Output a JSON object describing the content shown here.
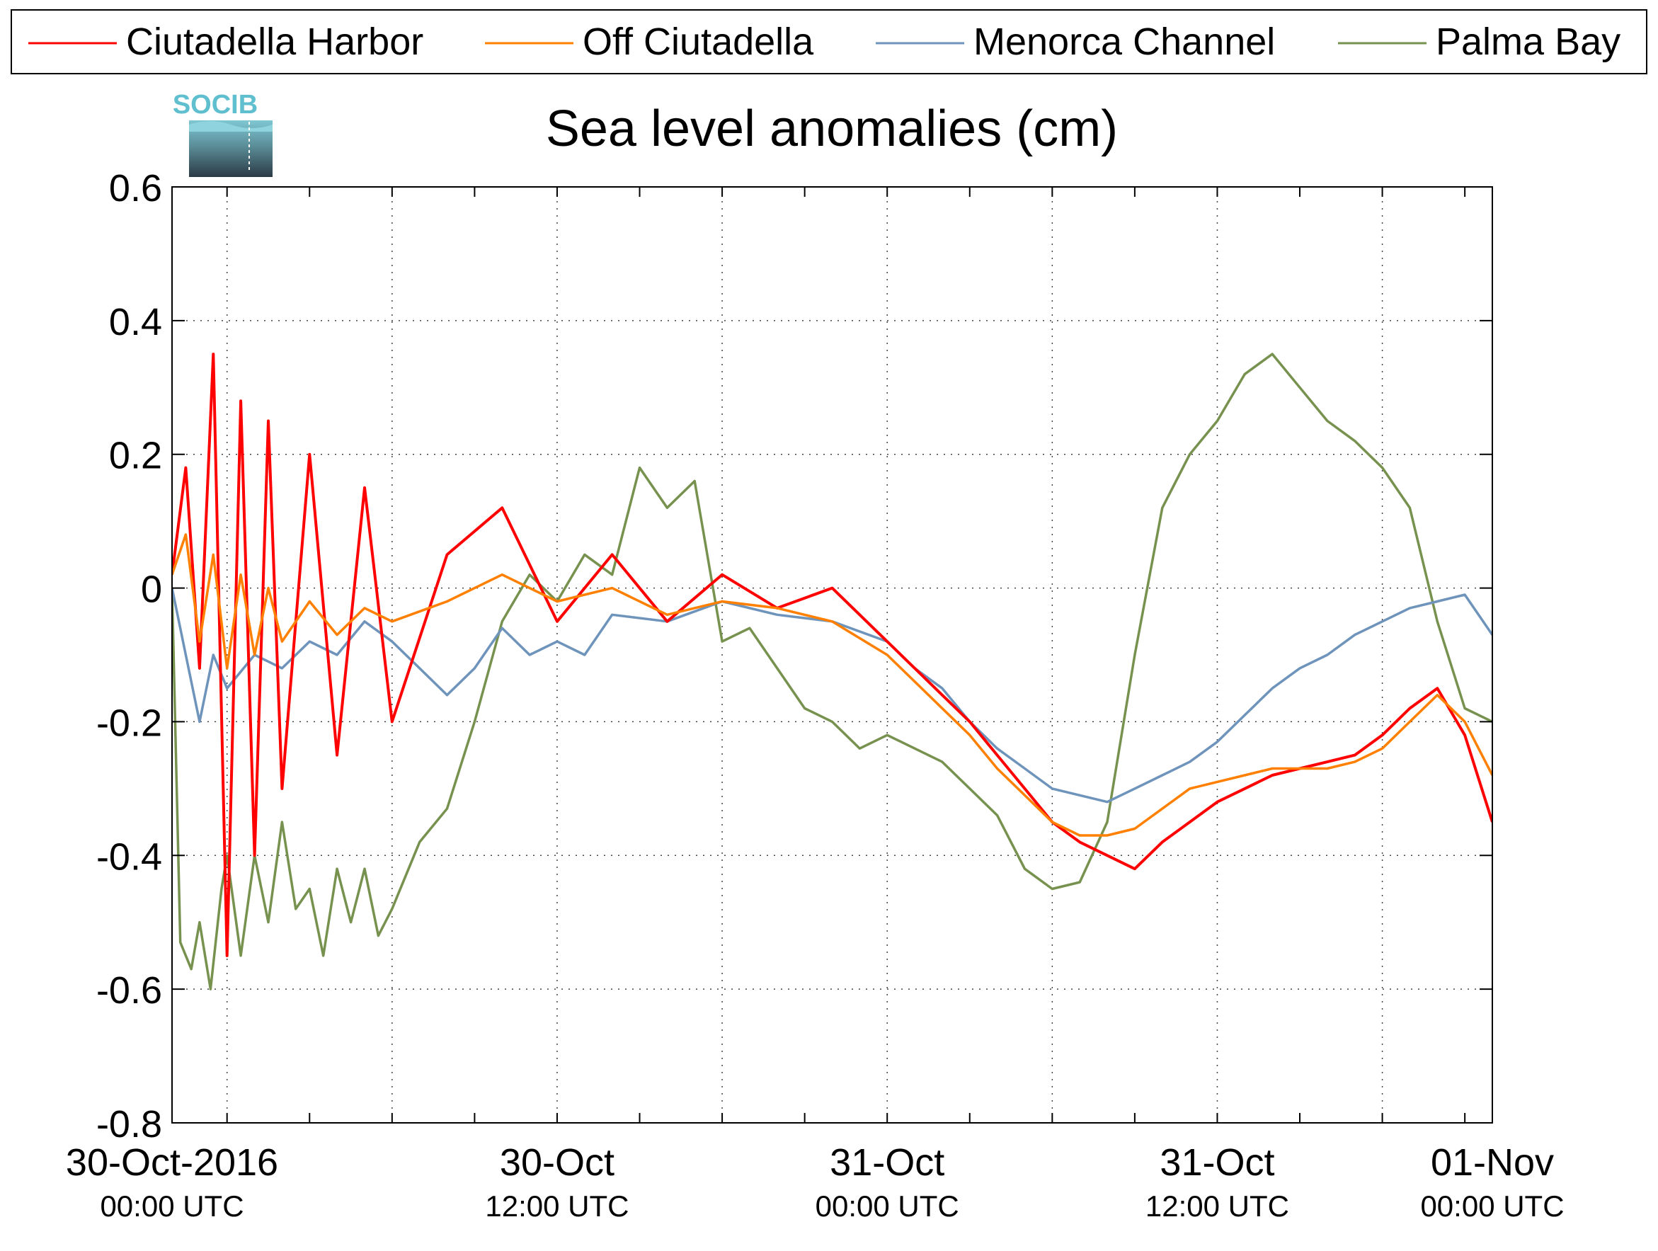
{
  "logo": {
    "text": "SOCIB"
  },
  "chart_data": {
    "type": "line",
    "title": "Sea level anomalies (cm)",
    "xlabel": "",
    "ylabel": "",
    "ylim": [
      -0.8,
      0.6
    ],
    "yticks": [
      -0.8,
      -0.6,
      -0.4,
      -0.2,
      0,
      0.2,
      0.4,
      0.6
    ],
    "ytick_labels": [
      "-0.8",
      "-0.6",
      "-0.4",
      "-0.2",
      "0",
      "0.2",
      "0.4",
      "0.6"
    ],
    "xlim_hours": [
      -2,
      46
    ],
    "x_unit": "hours after 30-Oct-2016 00:00 UTC",
    "xticks_major": [
      {
        "hour": 0,
        "date": "30-Oct-2016",
        "time": "00:00 UTC"
      },
      {
        "hour": 12,
        "date": "30-Oct",
        "time": "12:00 UTC"
      },
      {
        "hour": 24,
        "date": "31-Oct",
        "time": "00:00 UTC"
      },
      {
        "hour": 36,
        "date": "31-Oct",
        "time": "12:00 UTC"
      },
      {
        "hour": 48,
        "date": "01-Nov",
        "time": "00:00 UTC"
      }
    ],
    "grid": true,
    "legend_position": "top",
    "series": [
      {
        "name": "Ciutadella Harbor",
        "color": "#ff0000",
        "x": [
          -2,
          -1.5,
          -1,
          -0.5,
          0,
          0.5,
          1,
          1.5,
          2,
          3,
          4,
          5,
          6,
          8,
          10,
          12,
          14,
          16,
          18,
          20,
          22,
          24,
          25,
          26,
          27,
          28,
          29,
          30,
          31,
          32,
          33,
          34,
          35,
          36,
          37,
          38,
          39,
          40,
          41,
          42,
          43,
          44,
          45,
          46
        ],
        "y": [
          0.02,
          0.18,
          -0.12,
          0.35,
          -0.55,
          0.28,
          -0.4,
          0.25,
          -0.3,
          0.2,
          -0.25,
          0.15,
          -0.2,
          0.05,
          0.12,
          -0.05,
          0.05,
          -0.05,
          0.02,
          -0.03,
          0.0,
          -0.08,
          -0.12,
          -0.16,
          -0.2,
          -0.25,
          -0.3,
          -0.35,
          -0.38,
          -0.4,
          -0.42,
          -0.38,
          -0.35,
          -0.32,
          -0.3,
          -0.28,
          -0.27,
          -0.26,
          -0.25,
          -0.22,
          -0.18,
          -0.15,
          -0.22,
          -0.35
        ]
      },
      {
        "name": "Off Ciutadella",
        "color": "#ff8000",
        "x": [
          -2,
          -1.5,
          -1,
          -0.5,
          0,
          0.5,
          1,
          1.5,
          2,
          3,
          4,
          5,
          6,
          8,
          10,
          12,
          14,
          16,
          18,
          20,
          22,
          24,
          25,
          26,
          27,
          28,
          29,
          30,
          31,
          32,
          33,
          34,
          35,
          36,
          37,
          38,
          39,
          40,
          41,
          42,
          43,
          44,
          45,
          46
        ],
        "y": [
          0.02,
          0.08,
          -0.08,
          0.05,
          -0.12,
          0.02,
          -0.1,
          0.0,
          -0.08,
          -0.02,
          -0.07,
          -0.03,
          -0.05,
          -0.02,
          0.02,
          -0.02,
          0.0,
          -0.04,
          -0.02,
          -0.03,
          -0.05,
          -0.1,
          -0.14,
          -0.18,
          -0.22,
          -0.27,
          -0.31,
          -0.35,
          -0.37,
          -0.37,
          -0.36,
          -0.33,
          -0.3,
          -0.29,
          -0.28,
          -0.27,
          -0.27,
          -0.27,
          -0.26,
          -0.24,
          -0.2,
          -0.16,
          -0.2,
          -0.28
        ]
      },
      {
        "name": "Menorca Channel",
        "color": "#6f94bb",
        "x": [
          -2,
          -1.5,
          -1,
          -0.5,
          0,
          1,
          2,
          3,
          4,
          5,
          6,
          7,
          8,
          9,
          10,
          11,
          12,
          13,
          14,
          16,
          18,
          20,
          22,
          24,
          25,
          26,
          27,
          28,
          29,
          30,
          31,
          32,
          33,
          34,
          35,
          36,
          37,
          38,
          39,
          40,
          41,
          42,
          43,
          44,
          45,
          46
        ],
        "y": [
          0.0,
          -0.1,
          -0.2,
          -0.1,
          -0.15,
          -0.1,
          -0.12,
          -0.08,
          -0.1,
          -0.05,
          -0.08,
          -0.12,
          -0.16,
          -0.12,
          -0.06,
          -0.1,
          -0.08,
          -0.1,
          -0.04,
          -0.05,
          -0.02,
          -0.04,
          -0.05,
          -0.08,
          -0.12,
          -0.15,
          -0.2,
          -0.24,
          -0.27,
          -0.3,
          -0.31,
          -0.32,
          -0.3,
          -0.28,
          -0.26,
          -0.23,
          -0.19,
          -0.15,
          -0.12,
          -0.1,
          -0.07,
          -0.05,
          -0.03,
          -0.02,
          -0.01,
          -0.07
        ]
      },
      {
        "name": "Palma Bay",
        "color": "#77914f",
        "x": [
          -2,
          -1.7,
          -1.3,
          -1,
          -0.6,
          -0.2,
          0,
          0.5,
          1,
          1.5,
          2,
          2.5,
          3,
          3.5,
          4,
          4.5,
          5,
          5.5,
          6,
          7,
          8,
          9,
          10,
          11,
          12,
          13,
          14,
          15,
          16,
          17,
          18,
          19,
          20,
          21,
          22,
          23,
          24,
          25,
          26,
          27,
          28,
          29,
          30,
          31,
          32,
          33,
          34,
          35,
          36,
          37,
          38,
          39,
          40,
          41,
          42,
          43,
          44,
          45,
          46
        ],
        "y": [
          0.0,
          -0.53,
          -0.57,
          -0.5,
          -0.6,
          -0.45,
          -0.4,
          -0.55,
          -0.4,
          -0.5,
          -0.35,
          -0.48,
          -0.45,
          -0.55,
          -0.42,
          -0.5,
          -0.42,
          -0.52,
          -0.48,
          -0.38,
          -0.33,
          -0.2,
          -0.05,
          0.02,
          -0.02,
          0.05,
          0.02,
          0.18,
          0.12,
          0.16,
          -0.08,
          -0.06,
          -0.12,
          -0.18,
          -0.2,
          -0.24,
          -0.22,
          -0.24,
          -0.26,
          -0.3,
          -0.34,
          -0.42,
          -0.45,
          -0.44,
          -0.35,
          -0.1,
          0.12,
          0.2,
          0.25,
          0.32,
          0.35,
          0.3,
          0.25,
          0.22,
          0.18,
          0.12,
          -0.05,
          -0.18,
          -0.2
        ]
      }
    ]
  }
}
